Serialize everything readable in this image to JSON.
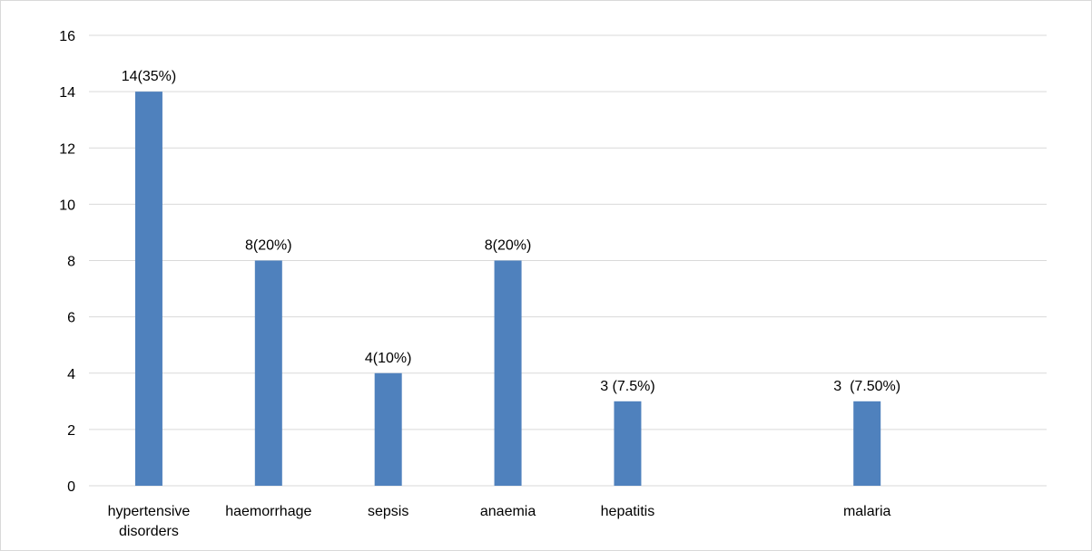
{
  "chart_data": {
    "type": "bar",
    "title": "",
    "xlabel": "",
    "ylabel": "",
    "ylim": [
      0,
      16
    ],
    "yticks": [
      "0",
      "2",
      "4",
      "6",
      "8",
      "10",
      "12",
      "14",
      "16"
    ],
    "grid": true,
    "legend": "none",
    "bar_color": "#4f81bd",
    "categories": [
      [
        "hypertensive",
        "disorders"
      ],
      [
        "haemorrhage"
      ],
      [
        "sepsis"
      ],
      [
        "anaemia"
      ],
      [
        "hepatitis"
      ],
      [
        "malaria"
      ]
    ],
    "values": [
      14,
      8,
      4,
      8,
      3,
      3
    ],
    "data_labels": [
      "14(35%)",
      "8(20%)",
      "4(10%)",
      "8(20%)",
      "3 (7.5%)",
      "3  (7.50%)"
    ]
  }
}
